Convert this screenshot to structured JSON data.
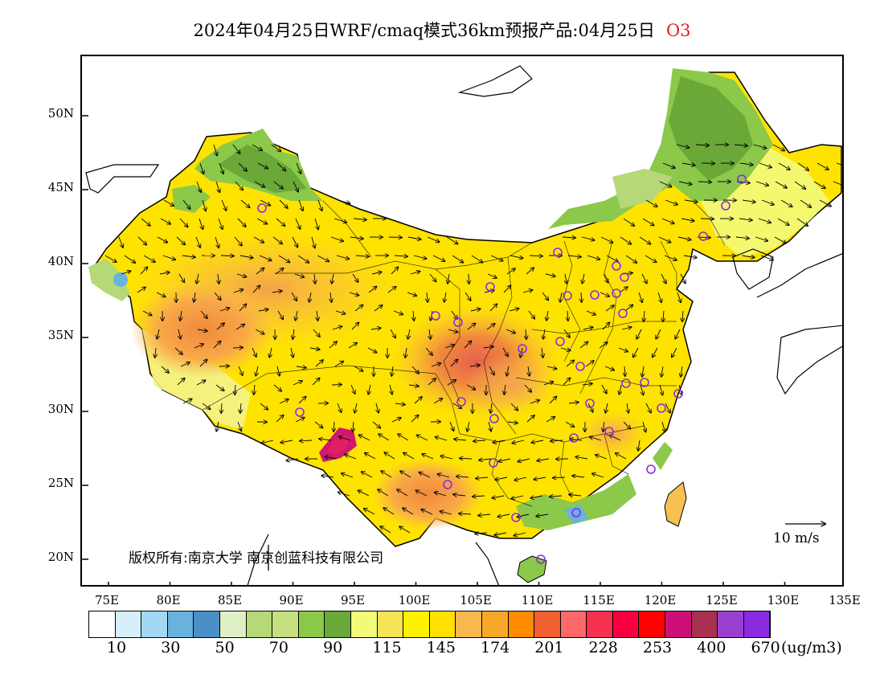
{
  "title": {
    "main": "2024年04月25日WRF/cmaq模式36km预报产品:04月25日",
    "species": "O3",
    "species_color": "#e02020"
  },
  "map": {
    "lat_ticks": [
      "50N",
      "45N",
      "40N",
      "35N",
      "30N",
      "25N",
      "20N"
    ],
    "lon_ticks": [
      "75E",
      "80E",
      "85E",
      "90E",
      "95E",
      "100E",
      "105E",
      "110E",
      "115E",
      "120E",
      "125E",
      "130E",
      "135E"
    ],
    "copyright": "版权所有:南京大学  南京创蓝科技有限公司",
    "wind_reference": "10 m/s",
    "station_marker_color": "#8a2be2"
  },
  "legend": {
    "colors": [
      "#ffffff",
      "#d6effa",
      "#a2d8f4",
      "#6ab2de",
      "#4a8fc6",
      "#dff0c4",
      "#b6d878",
      "#c6e07e",
      "#8cc84a",
      "#6aa838",
      "#f2fa7a",
      "#f4e456",
      "#fff200",
      "#ffe000",
      "#f8b84e",
      "#f8a828",
      "#ff8c00",
      "#f06030",
      "#ff6868",
      "#f83050",
      "#f80040",
      "#ff0000",
      "#cc1078",
      "#a83050",
      "#9a40d0",
      "#8a2be2"
    ],
    "labels": [
      "10",
      "30",
      "50",
      "70",
      "90",
      "115",
      "145",
      "174",
      "201",
      "228",
      "253",
      "400",
      "670"
    ],
    "unit": "(ug/m3)"
  }
}
